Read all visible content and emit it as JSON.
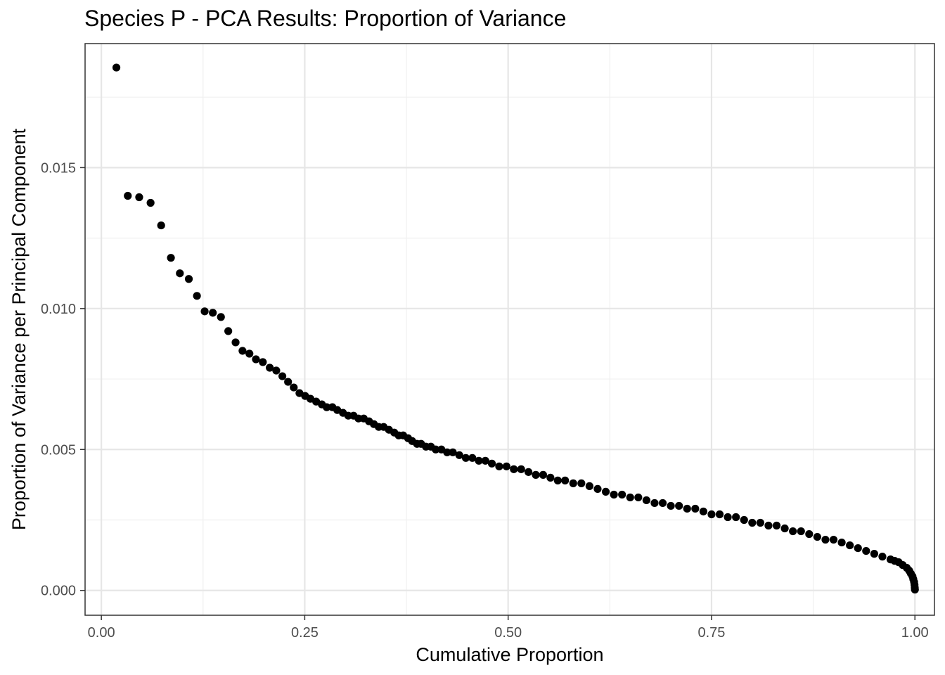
{
  "chart_data": {
    "type": "scatter",
    "title": "Species P - PCA Results: Proportion of Variance",
    "xlabel": "Cumulative Proportion",
    "ylabel": "Proportion of Variance per Principal Component",
    "xlim": [
      -0.02,
      1.024
    ],
    "ylim": [
      -0.00088,
      0.0194
    ],
    "x_ticks": [
      0.0,
      0.25,
      0.5,
      0.75,
      1.0
    ],
    "x_tick_labels": [
      "0.00",
      "0.25",
      "0.50",
      "0.75",
      "1.00"
    ],
    "y_ticks": [
      0.0,
      0.005,
      0.01,
      0.015
    ],
    "y_tick_labels": [
      "0.000",
      "0.005",
      "0.010",
      "0.015"
    ],
    "grid": true,
    "point_color": "#000000",
    "points": {
      "x": [
        0.0185,
        0.0325,
        0.0465,
        0.0605,
        0.0735,
        0.0855,
        0.0965,
        0.1075,
        0.1175,
        0.127,
        0.137,
        0.147,
        0.156,
        0.165,
        0.1735,
        0.182,
        0.19,
        0.1985,
        0.207,
        0.215,
        0.2225,
        0.2295,
        0.2365,
        0.2435,
        0.2505,
        0.257,
        0.264,
        0.271,
        0.277,
        0.284,
        0.29,
        0.297,
        0.3035,
        0.31,
        0.316,
        0.3225,
        0.329,
        0.335,
        0.341,
        0.347,
        0.3535,
        0.36,
        0.3655,
        0.371,
        0.377,
        0.382,
        0.388,
        0.393,
        0.399,
        0.405,
        0.411,
        0.418,
        0.425,
        0.432,
        0.44,
        0.448,
        0.456,
        0.464,
        0.472,
        0.48,
        0.489,
        0.498,
        0.507,
        0.516,
        0.525,
        0.534,
        0.543,
        0.552,
        0.561,
        0.57,
        0.58,
        0.59,
        0.6,
        0.61,
        0.62,
        0.63,
        0.64,
        0.65,
        0.66,
        0.67,
        0.68,
        0.69,
        0.7,
        0.71,
        0.72,
        0.73,
        0.74,
        0.75,
        0.76,
        0.77,
        0.78,
        0.79,
        0.8,
        0.81,
        0.82,
        0.83,
        0.84,
        0.85,
        0.86,
        0.87,
        0.88,
        0.89,
        0.9,
        0.91,
        0.92,
        0.93,
        0.94,
        0.95,
        0.96,
        0.97,
        0.975,
        0.98,
        0.985,
        0.99,
        0.993,
        0.995,
        0.997,
        0.998,
        0.999,
        0.9995,
        0.9998,
        1.0
      ],
      "y": [
        0.01855,
        0.014,
        0.01395,
        0.01375,
        0.01295,
        0.0118,
        0.01125,
        0.01105,
        0.01045,
        0.0099,
        0.00985,
        0.0097,
        0.0092,
        0.0088,
        0.0085,
        0.0084,
        0.0082,
        0.0081,
        0.0079,
        0.0078,
        0.0076,
        0.0074,
        0.0072,
        0.007,
        0.0069,
        0.0068,
        0.0067,
        0.0066,
        0.0065,
        0.0065,
        0.0064,
        0.0063,
        0.0062,
        0.0062,
        0.0061,
        0.0061,
        0.006,
        0.0059,
        0.0058,
        0.0058,
        0.0057,
        0.0056,
        0.0055,
        0.0055,
        0.0054,
        0.0053,
        0.0052,
        0.0052,
        0.0051,
        0.0051,
        0.005,
        0.005,
        0.0049,
        0.0049,
        0.0048,
        0.0047,
        0.0047,
        0.0046,
        0.0046,
        0.0045,
        0.0044,
        0.0044,
        0.0043,
        0.0043,
        0.0042,
        0.0041,
        0.0041,
        0.004,
        0.0039,
        0.0039,
        0.0038,
        0.0038,
        0.0037,
        0.0036,
        0.0035,
        0.0034,
        0.0034,
        0.0033,
        0.0033,
        0.0032,
        0.0031,
        0.0031,
        0.003,
        0.003,
        0.0029,
        0.0029,
        0.0028,
        0.0027,
        0.0027,
        0.0026,
        0.0026,
        0.0025,
        0.0024,
        0.0024,
        0.0023,
        0.0023,
        0.0022,
        0.0021,
        0.0021,
        0.002,
        0.0019,
        0.0018,
        0.0018,
        0.0017,
        0.0016,
        0.0015,
        0.0014,
        0.0013,
        0.0012,
        0.0011,
        0.00105,
        0.001,
        0.0009,
        0.0008,
        0.0007,
        0.0006,
        0.0005,
        0.0004,
        0.0003,
        0.0002,
        0.0001,
        3e-05
      ]
    }
  }
}
